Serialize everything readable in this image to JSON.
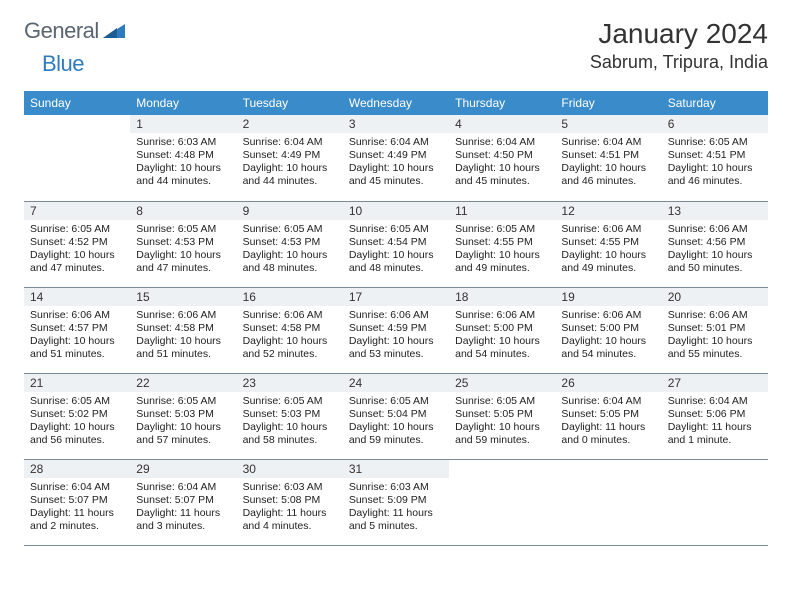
{
  "logo": {
    "general": "General",
    "blue": "Blue"
  },
  "title": "January 2024",
  "location": "Sabrum, Tripura, India",
  "colors": {
    "headerBlue": "#3a8bc9",
    "cellHeaderGray": "#eef1f3",
    "logoBlue": "#2f7bbf",
    "logoGray": "#5a6570",
    "border": "#7a8a99"
  },
  "daysOfWeek": [
    "Sunday",
    "Monday",
    "Tuesday",
    "Wednesday",
    "Thursday",
    "Friday",
    "Saturday"
  ],
  "weeks": [
    [
      {
        "num": "",
        "lines": []
      },
      {
        "num": "1",
        "lines": [
          "Sunrise: 6:03 AM",
          "Sunset: 4:48 PM",
          "Daylight: 10 hours and 44 minutes."
        ]
      },
      {
        "num": "2",
        "lines": [
          "Sunrise: 6:04 AM",
          "Sunset: 4:49 PM",
          "Daylight: 10 hours and 44 minutes."
        ]
      },
      {
        "num": "3",
        "lines": [
          "Sunrise: 6:04 AM",
          "Sunset: 4:49 PM",
          "Daylight: 10 hours and 45 minutes."
        ]
      },
      {
        "num": "4",
        "lines": [
          "Sunrise: 6:04 AM",
          "Sunset: 4:50 PM",
          "Daylight: 10 hours and 45 minutes."
        ]
      },
      {
        "num": "5",
        "lines": [
          "Sunrise: 6:04 AM",
          "Sunset: 4:51 PM",
          "Daylight: 10 hours and 46 minutes."
        ]
      },
      {
        "num": "6",
        "lines": [
          "Sunrise: 6:05 AM",
          "Sunset: 4:51 PM",
          "Daylight: 10 hours and 46 minutes."
        ]
      }
    ],
    [
      {
        "num": "7",
        "lines": [
          "Sunrise: 6:05 AM",
          "Sunset: 4:52 PM",
          "Daylight: 10 hours and 47 minutes."
        ]
      },
      {
        "num": "8",
        "lines": [
          "Sunrise: 6:05 AM",
          "Sunset: 4:53 PM",
          "Daylight: 10 hours and 47 minutes."
        ]
      },
      {
        "num": "9",
        "lines": [
          "Sunrise: 6:05 AM",
          "Sunset: 4:53 PM",
          "Daylight: 10 hours and 48 minutes."
        ]
      },
      {
        "num": "10",
        "lines": [
          "Sunrise: 6:05 AM",
          "Sunset: 4:54 PM",
          "Daylight: 10 hours and 48 minutes."
        ]
      },
      {
        "num": "11",
        "lines": [
          "Sunrise: 6:05 AM",
          "Sunset: 4:55 PM",
          "Daylight: 10 hours and 49 minutes."
        ]
      },
      {
        "num": "12",
        "lines": [
          "Sunrise: 6:06 AM",
          "Sunset: 4:55 PM",
          "Daylight: 10 hours and 49 minutes."
        ]
      },
      {
        "num": "13",
        "lines": [
          "Sunrise: 6:06 AM",
          "Sunset: 4:56 PM",
          "Daylight: 10 hours and 50 minutes."
        ]
      }
    ],
    [
      {
        "num": "14",
        "lines": [
          "Sunrise: 6:06 AM",
          "Sunset: 4:57 PM",
          "Daylight: 10 hours and 51 minutes."
        ]
      },
      {
        "num": "15",
        "lines": [
          "Sunrise: 6:06 AM",
          "Sunset: 4:58 PM",
          "Daylight: 10 hours and 51 minutes."
        ]
      },
      {
        "num": "16",
        "lines": [
          "Sunrise: 6:06 AM",
          "Sunset: 4:58 PM",
          "Daylight: 10 hours and 52 minutes."
        ]
      },
      {
        "num": "17",
        "lines": [
          "Sunrise: 6:06 AM",
          "Sunset: 4:59 PM",
          "Daylight: 10 hours and 53 minutes."
        ]
      },
      {
        "num": "18",
        "lines": [
          "Sunrise: 6:06 AM",
          "Sunset: 5:00 PM",
          "Daylight: 10 hours and 54 minutes."
        ]
      },
      {
        "num": "19",
        "lines": [
          "Sunrise: 6:06 AM",
          "Sunset: 5:00 PM",
          "Daylight: 10 hours and 54 minutes."
        ]
      },
      {
        "num": "20",
        "lines": [
          "Sunrise: 6:06 AM",
          "Sunset: 5:01 PM",
          "Daylight: 10 hours and 55 minutes."
        ]
      }
    ],
    [
      {
        "num": "21",
        "lines": [
          "Sunrise: 6:05 AM",
          "Sunset: 5:02 PM",
          "Daylight: 10 hours and 56 minutes."
        ]
      },
      {
        "num": "22",
        "lines": [
          "Sunrise: 6:05 AM",
          "Sunset: 5:03 PM",
          "Daylight: 10 hours and 57 minutes."
        ]
      },
      {
        "num": "23",
        "lines": [
          "Sunrise: 6:05 AM",
          "Sunset: 5:03 PM",
          "Daylight: 10 hours and 58 minutes."
        ]
      },
      {
        "num": "24",
        "lines": [
          "Sunrise: 6:05 AM",
          "Sunset: 5:04 PM",
          "Daylight: 10 hours and 59 minutes."
        ]
      },
      {
        "num": "25",
        "lines": [
          "Sunrise: 6:05 AM",
          "Sunset: 5:05 PM",
          "Daylight: 10 hours and 59 minutes."
        ]
      },
      {
        "num": "26",
        "lines": [
          "Sunrise: 6:04 AM",
          "Sunset: 5:05 PM",
          "Daylight: 11 hours and 0 minutes."
        ]
      },
      {
        "num": "27",
        "lines": [
          "Sunrise: 6:04 AM",
          "Sunset: 5:06 PM",
          "Daylight: 11 hours and 1 minute."
        ]
      }
    ],
    [
      {
        "num": "28",
        "lines": [
          "Sunrise: 6:04 AM",
          "Sunset: 5:07 PM",
          "Daylight: 11 hours and 2 minutes."
        ]
      },
      {
        "num": "29",
        "lines": [
          "Sunrise: 6:04 AM",
          "Sunset: 5:07 PM",
          "Daylight: 11 hours and 3 minutes."
        ]
      },
      {
        "num": "30",
        "lines": [
          "Sunrise: 6:03 AM",
          "Sunset: 5:08 PM",
          "Daylight: 11 hours and 4 minutes."
        ]
      },
      {
        "num": "31",
        "lines": [
          "Sunrise: 6:03 AM",
          "Sunset: 5:09 PM",
          "Daylight: 11 hours and 5 minutes."
        ]
      },
      {
        "num": "",
        "lines": []
      },
      {
        "num": "",
        "lines": []
      },
      {
        "num": "",
        "lines": []
      }
    ]
  ]
}
